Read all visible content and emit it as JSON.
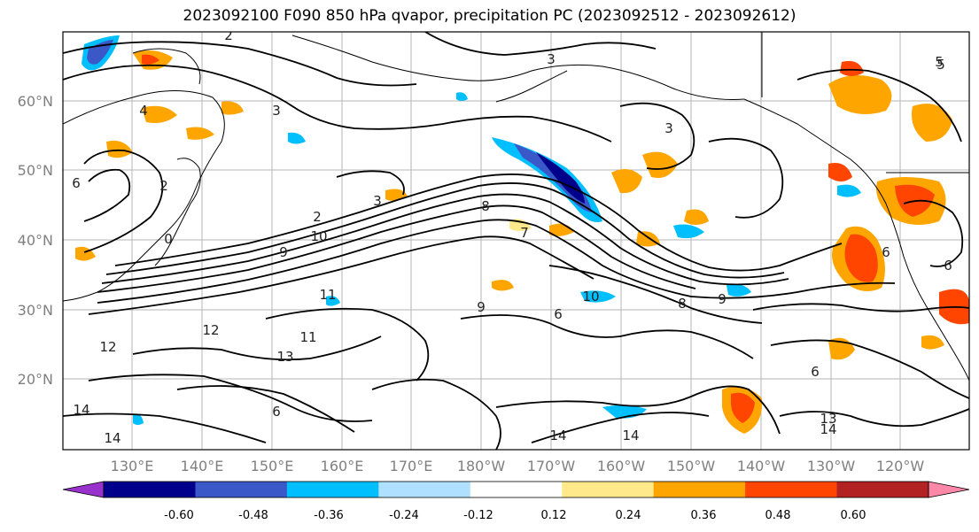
{
  "title": "2023092100 F090 850 hPa qvapor, precipitation PC (2023092512 - 2023092612)",
  "map": {
    "lat_ticks": [
      "60°N",
      "50°N",
      "40°N",
      "30°N",
      "20°N"
    ],
    "lon_ticks": [
      "130°E",
      "140°E",
      "150°E",
      "160°E",
      "170°E",
      "180°W",
      "170°W",
      "160°W",
      "150°W",
      "140°W",
      "130°W",
      "120°W"
    ],
    "contour_labels": [
      "2",
      "3",
      "3",
      "5",
      "4",
      "3",
      "6",
      "2",
      "0",
      "2",
      "3",
      "8",
      "10",
      "9",
      "11",
      "12",
      "13",
      "11",
      "12",
      "14",
      "14",
      "9",
      "10",
      "6",
      "8",
      "9",
      "6",
      "6",
      "14",
      "14",
      "13",
      "14",
      "7",
      "6",
      "5",
      "6"
    ]
  },
  "colorbar": {
    "tick_labels": [
      "-0.60",
      "-0.48",
      "-0.36",
      "-0.24",
      "-0.12",
      "0.12",
      "0.24",
      "0.36",
      "0.48",
      "0.60"
    ],
    "colors": [
      "#9932cc",
      "#00008b",
      "#3a58c8",
      "#00bfff",
      "#b0e0ff",
      "#ffffff",
      "#ffe98a",
      "#ffa500",
      "#ff4500",
      "#b22222",
      "#ff88a8"
    ]
  }
}
